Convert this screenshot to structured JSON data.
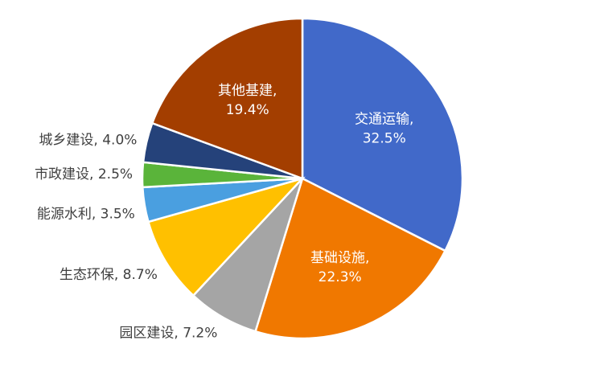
{
  "chart_data": {
    "type": "pie",
    "categories": [
      "交通运输",
      "基础设施",
      "园区建设",
      "生态环保",
      "能源水利",
      "市政建设",
      "城乡建设",
      "其他基建"
    ],
    "values": [
      32.5,
      22.3,
      7.2,
      8.7,
      3.5,
      2.5,
      4.0,
      19.4
    ],
    "value_labels": [
      "32.5%",
      "22.3%",
      "7.2%",
      "8.7%",
      "3.5%",
      "2.5%",
      "4.0%",
      "19.4%"
    ],
    "label_separator": ", ",
    "colors": [
      "#4169c9",
      "#f07800",
      "#a5a5a5",
      "#ffc000",
      "#4a9fe0",
      "#5ab43a",
      "#25427a",
      "#a33e00"
    ]
  }
}
